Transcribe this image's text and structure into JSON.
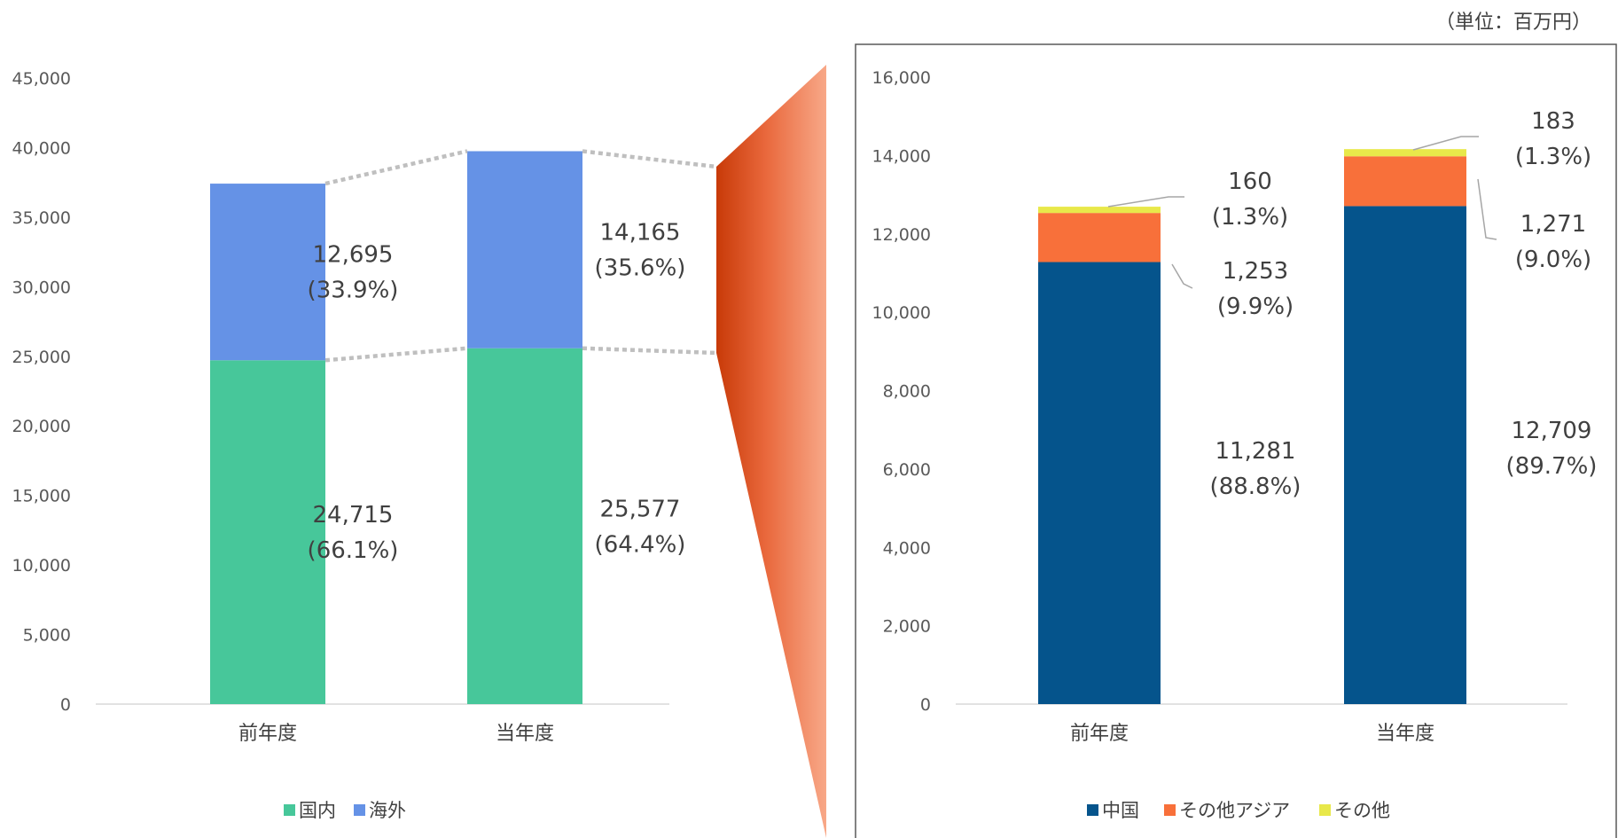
{
  "unit_label": "（単位：百万円）",
  "chart_data": [
    {
      "type": "bar",
      "stacked": true,
      "categories": [
        "前年度",
        "当年度"
      ],
      "series": [
        {
          "name": "国内",
          "values": [
            24715,
            25577
          ],
          "color": "#47C79A",
          "labels": [
            "24,715\n(66.1%)",
            "25,577\n(64.4%)"
          ]
        },
        {
          "name": "海外",
          "values": [
            12695,
            14165
          ],
          "color": "#6592E6",
          "labels": [
            "12,695\n(33.9%)",
            "14,165\n(35.6%)"
          ]
        }
      ],
      "ylim": [
        0,
        45000
      ],
      "yticks": [
        "0",
        "5,000",
        "10,000",
        "15,000",
        "20,000",
        "25,000",
        "30,000",
        "35,000",
        "40,000",
        "45,000"
      ],
      "legend": "bottom",
      "grid": false
    },
    {
      "type": "bar",
      "stacked": true,
      "categories": [
        "前年度",
        "当年度"
      ],
      "series": [
        {
          "name": "中国",
          "values": [
            11281,
            12709
          ],
          "color": "#05548C",
          "labels": [
            "11,281\n(88.8%)",
            "12,709\n(89.7%)"
          ]
        },
        {
          "name": "その他アジア",
          "values": [
            1253,
            1271
          ],
          "color": "#F8703A",
          "labels": [
            "1,253\n(9.9%)",
            "1,271\n(9.0%)"
          ]
        },
        {
          "name": "その他",
          "values": [
            160,
            183
          ],
          "color": "#E8E84A",
          "labels": [
            "160\n(1.3%)",
            "183\n(1.3%)"
          ]
        }
      ],
      "ylim": [
        0,
        16000
      ],
      "yticks": [
        "0",
        "2,000",
        "4,000",
        "6,000",
        "8,000",
        "10,000",
        "12,000",
        "14,000",
        "16,000"
      ],
      "legend": "bottom",
      "grid": false
    }
  ]
}
